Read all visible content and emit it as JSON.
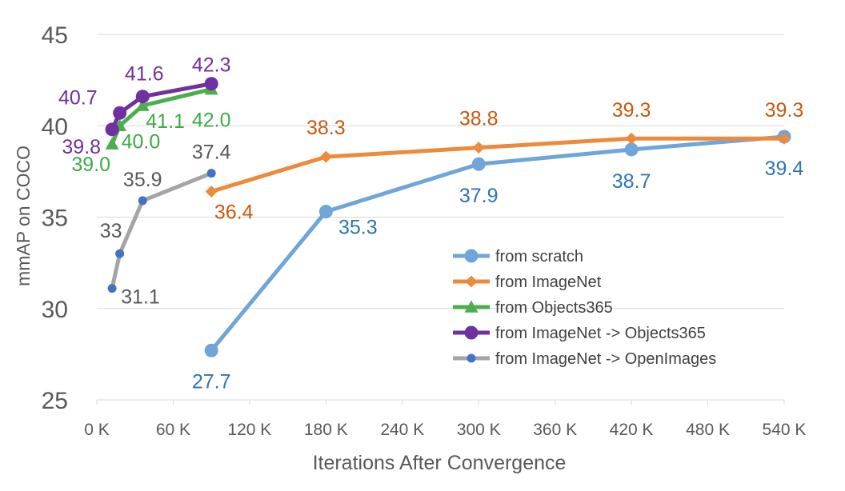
{
  "chart_data": {
    "type": "line",
    "title": "",
    "xlabel": "Iterations After Convergence",
    "ylabel": "mmAP on COCO",
    "xlim": [
      0,
      540
    ],
    "ylim": [
      25,
      45
    ],
    "x_ticks": [
      0,
      60,
      120,
      180,
      240,
      300,
      360,
      420,
      480,
      540
    ],
    "x_tick_labels": [
      "0 K",
      "60 K",
      "120 K",
      "180 K",
      "240 K",
      "300 K",
      "360 K",
      "420 K",
      "480 K",
      "540 K"
    ],
    "y_ticks": [
      25,
      30,
      35,
      40,
      45
    ],
    "y_tick_labels": [
      "25",
      "30",
      "35",
      "40",
      "45"
    ],
    "grid": true,
    "legend_position": "bottom-right",
    "series": [
      {
        "name": "from scratch",
        "color": "#6fa5d8",
        "label_color": "#2e75b6",
        "marker": "circle",
        "x": [
          90,
          180,
          300,
          420,
          540
        ],
        "y": [
          27.7,
          35.3,
          37.9,
          38.7,
          39.4
        ],
        "labels": [
          "27.7",
          "35.3",
          "37.9",
          "38.7",
          "39.4"
        ]
      },
      {
        "name": "from ImageNet",
        "color": "#ed8a3c",
        "label_color": "#c55a11",
        "marker": "diamond",
        "x": [
          90,
          180,
          300,
          420,
          540
        ],
        "y": [
          36.4,
          38.3,
          38.8,
          39.3,
          39.3
        ],
        "labels": [
          "36.4",
          "38.3",
          "38.8",
          "39.3",
          "39.3"
        ]
      },
      {
        "name": "from Objects365",
        "color": "#4cae4c",
        "label_color": "#3daa47",
        "marker": "triangle",
        "x": [
          12,
          18,
          36,
          90
        ],
        "y": [
          39.0,
          40.0,
          41.1,
          42.0
        ],
        "labels": [
          "39.0",
          "40.0",
          "41.1",
          "42.0"
        ]
      },
      {
        "name": "from ImageNet -> Objects365",
        "color": "#7030a0",
        "label_color": "#7030a0",
        "marker": "circle",
        "x": [
          12,
          18,
          36,
          90
        ],
        "y": [
          39.8,
          40.7,
          41.6,
          42.3
        ],
        "labels": [
          "39.8",
          "40.7",
          "41.6",
          "42.3"
        ]
      },
      {
        "name": "from ImageNet -> OpenImages",
        "color": "#a5a5a5",
        "label_color": "#595959",
        "marker": "small-circle",
        "marker_color": "#4472c4",
        "x": [
          12,
          18,
          36,
          90
        ],
        "y": [
          31.1,
          33.0,
          35.9,
          37.4
        ],
        "labels": [
          "31.1",
          "33",
          "35.9",
          "37.4"
        ]
      }
    ]
  }
}
